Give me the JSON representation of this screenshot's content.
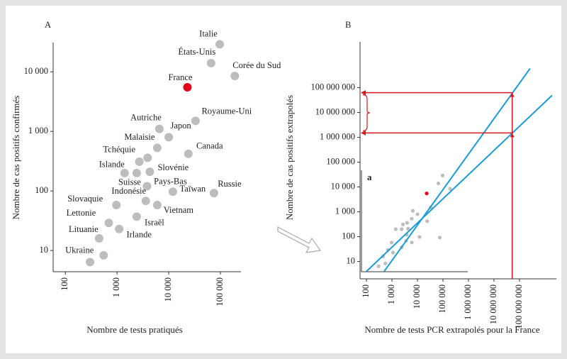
{
  "chart_data": [
    {
      "type": "scatter",
      "title": "A",
      "xlabel": "Nombre de tests pratiqués",
      "ylabel": "Nombre de cas positifs confirmés",
      "xscale": "log",
      "yscale": "log",
      "xlim": [
        58,
        250000
      ],
      "ylim": [
        4.4,
        31000
      ],
      "xticks": [
        100,
        {
          "value": 1000,
          "label": "1 000"
        },
        {
          "value": 10000,
          "label": "10 000"
        },
        {
          "value": 100000,
          "label": "100 000"
        }
      ],
      "yticks": [
        10,
        100,
        {
          "value": 1000,
          "label": "1 000"
        },
        {
          "value": 10000,
          "label": "10 000"
        }
      ],
      "labels": [
        "Italie",
        "États-Unis",
        "Corée du Sud",
        "France",
        "Royaume-Uni",
        "Autriche",
        "Japon",
        "Malaisie",
        "Tchéquie",
        null,
        "Canada",
        "Islande",
        "Suisse",
        "Slovénie",
        "Pays-Bas",
        "Indonésie",
        "Taïwan",
        "Russie",
        "Slovaquie",
        "Vietnam",
        "Lettonie",
        "Israël",
        "Irlande",
        "Lituanie",
        "Ukraine",
        null
      ],
      "x": [
        97000,
        66000,
        190000,
        23000,
        33000,
        6600,
        10000,
        6000,
        3900,
        2700,
        24000,
        1400,
        2400,
        4300,
        3800,
        3600,
        12000,
        75000,
        970,
        6000,
        690,
        2400,
        1100,
        450,
        550,
        300
      ],
      "y": [
        29000,
        14000,
        8500,
        5500,
        1500,
        1100,
        800,
        530,
        360,
        310,
        420,
        200,
        200,
        210,
        120,
        68,
        97,
        92,
        58,
        58,
        29,
        37,
        23,
        16,
        8.3,
        6.4
      ],
      "colors": [
        "#bdbdbd",
        "#bdbdbd",
        "#bdbdbd",
        "#e3051b",
        "#bdbdbd",
        "#bdbdbd",
        "#bdbdbd",
        "#bdbdbd",
        "#bdbdbd",
        "#bdbdbd",
        "#bdbdbd",
        "#bdbdbd",
        "#bdbdbd",
        "#bdbdbd",
        "#bdbdbd",
        "#bdbdbd",
        "#bdbdbd",
        "#bdbdbd",
        "#bdbdbd",
        "#bdbdbd",
        "#bdbdbd",
        "#bdbdbd",
        "#bdbdbd",
        "#bdbdbd",
        "#bdbdbd",
        "#bdbdbd"
      ]
    },
    {
      "type": "line",
      "title": "B",
      "inset_label": "a",
      "xlabel": "Nombre de tests PCR extrapolés pour la France",
      "ylabel": "Nombre de cas positifs extrapolés",
      "xscale": "log",
      "yscale": "log",
      "xlim": [
        56,
        2800000000
      ],
      "ylim": [
        2,
        7000000000
      ],
      "xticks": [
        100,
        {
          "value": 1000,
          "label": "1 000"
        },
        {
          "value": 10000,
          "label": "10 000"
        },
        {
          "value": 100000,
          "label": "100 000"
        },
        {
          "value": 1000000,
          "label": "1 000 000"
        },
        {
          "value": 10000000,
          "label": "10 000 000"
        },
        {
          "value": 100000000,
          "label": "100 000 000"
        }
      ],
      "yticks": [
        10,
        100,
        {
          "value": 1000,
          "label": "1 000"
        },
        {
          "value": 10000,
          "label": "10 000"
        },
        {
          "value": 100000,
          "label": "100 000"
        },
        {
          "value": 1000000,
          "label": "1 000 000"
        },
        {
          "value": 10000000,
          "label": "10 000 000"
        },
        {
          "value": 100000000,
          "label": "100 000 000"
        }
      ],
      "series": [
        {
          "color": "#1b9bd7",
          "x": [
            495,
            260000000
          ],
          "y": [
            4,
            590000000
          ]
        },
        {
          "color": "#1b9bd7",
          "x": [
            100,
            1900000000
          ],
          "y": [
            4,
            49000000
          ]
        }
      ],
      "reference": {
        "color": "#d7191f",
        "x": 52000000,
        "y": [
          63000000,
          1500000
        ]
      }
    }
  ]
}
